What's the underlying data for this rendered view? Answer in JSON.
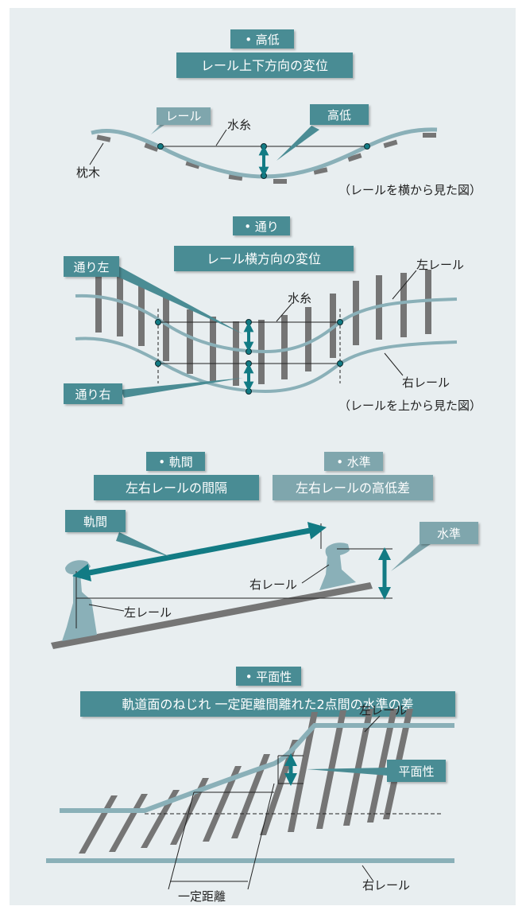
{
  "sections": {
    "koutei": {
      "heading": "• 高低",
      "subtitle": "レール上下方向の変位",
      "label_rail": "レール",
      "label_suishi": "水糸",
      "label_koutei": "高低",
      "label_makuragi": "枕木",
      "caption": "（レールを横から見た図）"
    },
    "toori": {
      "heading": "• 通り",
      "subtitle": "レール横方向の変位",
      "label_left": "通り左",
      "label_right": "通り右",
      "label_suishi": "水糸",
      "label_left_rail": "左レール",
      "label_right_rail": "右レール",
      "caption": "（レールを上から見た図）"
    },
    "kikan": {
      "heading": "• 軌間",
      "subtitle": "左右レールの間隔",
      "label": "軌間",
      "label_right_rail": "右レール",
      "label_left_rail": "左レール"
    },
    "suijun": {
      "heading": "• 水準",
      "subtitle": "左右レールの高低差",
      "label": "水準"
    },
    "heimensei": {
      "heading": "• 平面性",
      "subtitle": "軌道面のねじれ 一定距離間離れた2点間の水準の差",
      "label": "平面性",
      "label_left_rail": "左レール",
      "label_right_rail": "右レール",
      "label_distance": "一定距離"
    }
  },
  "colors": {
    "panel_bg": "#e8eef0",
    "label_box": "#4a8c94",
    "label_box_light": "#7fa6ad",
    "rail": "#8ab0b8",
    "sleeper": "#757575",
    "arrow": "#127b84"
  }
}
